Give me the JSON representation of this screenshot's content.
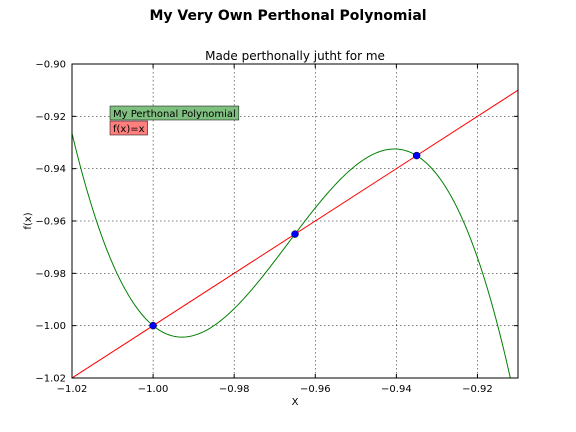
{
  "chart_data": {
    "type": "line",
    "suptitle": "My Very Own Perthonal Polynomial",
    "title": "Made perthonally jutht for me",
    "xlabel": "X",
    "ylabel": "f(x)",
    "xlim": [
      -1.02,
      -0.91
    ],
    "ylim": [
      -1.02,
      -0.9
    ],
    "grid": true,
    "xticks": [
      -1.02,
      -1.0,
      -0.98,
      -0.96,
      -0.94,
      -0.92
    ],
    "xtick_labels": [
      "−1.02",
      "−1.00",
      "−0.98",
      "−0.96",
      "−0.94",
      "−0.92"
    ],
    "yticks": [
      -1.02,
      -1.0,
      -0.98,
      -0.96,
      -0.94,
      -0.92,
      -0.9
    ],
    "ytick_labels": [
      "−1.02",
      "−1.00",
      "−0.98",
      "−0.96",
      "−0.94",
      "−0.92",
      "−0.90"
    ],
    "series": [
      {
        "name": "My Perthonal Polynomial",
        "color": "#008000",
        "polynomial": {
          "roots": [
            -1.0,
            -0.965,
            -0.935
          ],
          "k": 1000
        }
      },
      {
        "name": "f(x)=x",
        "color": "#ff0000",
        "line": {
          "slope": 1,
          "intercept": 0
        }
      }
    ],
    "points": {
      "color": "#0000ff",
      "x": [
        -1.0,
        -0.965,
        -0.935
      ],
      "y": [
        -1.0,
        -0.965,
        -0.935
      ]
    },
    "legend": {
      "placement": "upper-left",
      "entries": [
        {
          "label": "My Perthonal Polynomial",
          "color": "#7fbf7f"
        },
        {
          "label": "f(x)=x",
          "color": "#ff7f7f"
        }
      ]
    }
  }
}
